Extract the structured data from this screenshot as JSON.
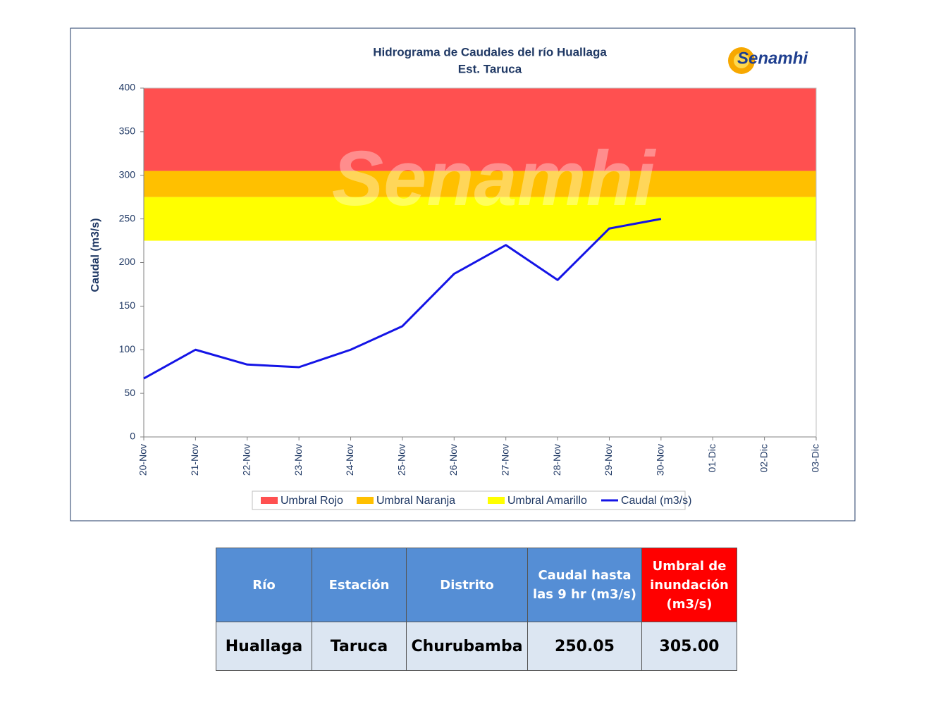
{
  "chart_data": {
    "type": "line",
    "title": "Hidrograma  de Caudales del río Huallaga",
    "subtitle": "Est. Taruca",
    "logo": "Senamhi",
    "y_label": "Caudal (m3/s)",
    "categories": [
      "20-Nov",
      "21-Nov",
      "22-Nov",
      "23-Nov",
      "24-Nov",
      "25-Nov",
      "26-Nov",
      "27-Nov",
      "28-Nov",
      "29-Nov",
      "30-Nov",
      "01-Dic",
      "02-Dic",
      "03-Dic"
    ],
    "bands": [
      {
        "name": "Umbral Rojo",
        "color": "#ff5050",
        "from": 305,
        "to": 400
      },
      {
        "name": "Umbral Naranja",
        "color": "#ffc000",
        "from": 275,
        "to": 305
      },
      {
        "name": "Umbral Amarillo",
        "color": "#ffff00",
        "from": 225,
        "to": 275
      }
    ],
    "series": [
      {
        "name": "Caudal (m3/s)",
        "color": "#1414e6",
        "values": [
          67,
          100,
          83,
          80,
          100,
          127,
          187,
          220,
          180,
          239,
          250,
          null,
          null,
          null
        ]
      }
    ],
    "ylim": [
      0,
      400
    ],
    "yticks": [
      0,
      50,
      100,
      150,
      200,
      250,
      300,
      350,
      400
    ],
    "grid": false,
    "legend": "bottom"
  },
  "table": {
    "header": [
      "Río",
      "Estación",
      "Distrito",
      "Caudal hasta las 9 hr (m3/s)",
      "Umbral de inundación (m3/s)"
    ],
    "rows": [
      [
        "Huallaga",
        "Taruca",
        "Churubamba",
        "250.05",
        "305.00"
      ]
    ]
  }
}
